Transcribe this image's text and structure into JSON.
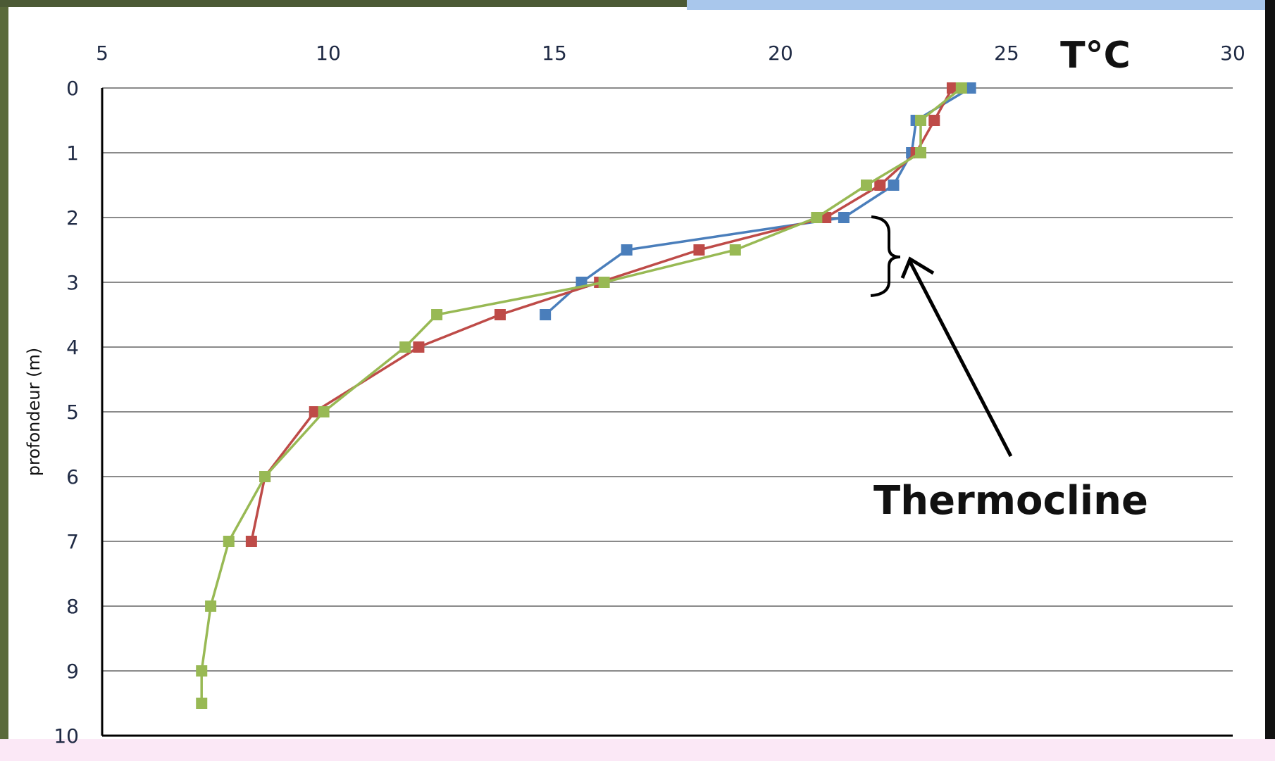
{
  "chart_data": {
    "type": "line",
    "title": "",
    "xlabel": "T°C",
    "ylabel": "profondeur (m)",
    "xlim": [
      5,
      30
    ],
    "ylim": [
      0,
      10
    ],
    "y_inverted": true,
    "x_axis_position": "top",
    "x_ticks": [
      "5",
      "10",
      "15",
      "20",
      "25",
      "30"
    ],
    "y_ticks": [
      "0",
      "1",
      "2",
      "3",
      "4",
      "5",
      "6",
      "7",
      "8",
      "9",
      "10"
    ],
    "grid": "horizontal",
    "legend": "none",
    "series": [
      {
        "color": "#4a7ebb",
        "points": [
          [
            24.2,
            0
          ],
          [
            23.0,
            0.5
          ],
          [
            22.9,
            1.0
          ],
          [
            22.5,
            1.5
          ],
          [
            21.4,
            2.0
          ],
          [
            16.6,
            2.5
          ],
          [
            15.6,
            3.0
          ],
          [
            14.8,
            3.5
          ]
        ]
      },
      {
        "color": "#be4b48",
        "points": [
          [
            23.8,
            0
          ],
          [
            23.4,
            0.5
          ],
          [
            23.0,
            1.0
          ],
          [
            22.2,
            1.5
          ],
          [
            21.0,
            2.0
          ],
          [
            18.2,
            2.5
          ],
          [
            16.0,
            3.0
          ],
          [
            13.8,
            3.5
          ],
          [
            12.0,
            4.0
          ],
          [
            9.7,
            5.0
          ],
          [
            8.6,
            6.0
          ],
          [
            8.3,
            7.0
          ]
        ]
      },
      {
        "color": "#98b954",
        "points": [
          [
            24.0,
            0
          ],
          [
            23.1,
            0.5
          ],
          [
            23.1,
            1.0
          ],
          [
            21.9,
            1.5
          ],
          [
            20.8,
            2.0
          ],
          [
            19.0,
            2.5
          ],
          [
            16.1,
            3.0
          ],
          [
            12.4,
            3.5
          ],
          [
            11.7,
            4.0
          ],
          [
            9.9,
            5.0
          ],
          [
            8.6,
            6.0
          ],
          [
            7.8,
            7.0
          ],
          [
            7.4,
            8.0
          ],
          [
            7.2,
            9.0
          ],
          [
            7.2,
            9.5
          ]
        ]
      }
    ],
    "annotations": [
      {
        "text": "Thermocline",
        "bracket_depth": [
          2,
          3
        ]
      }
    ]
  }
}
